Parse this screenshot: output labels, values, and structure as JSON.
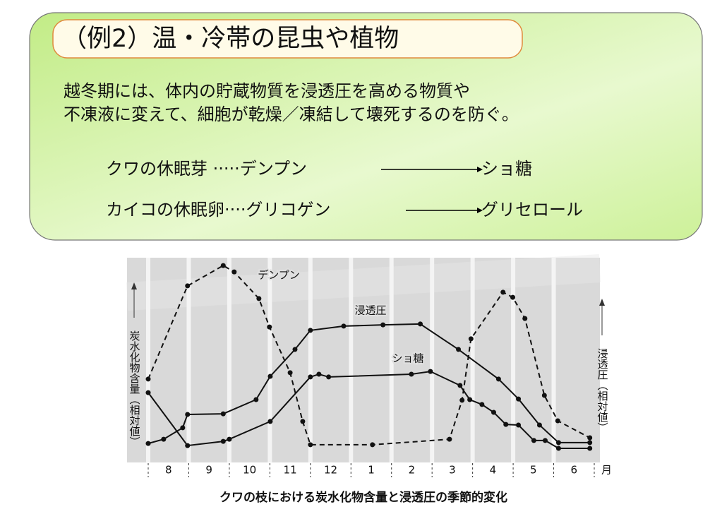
{
  "header": {
    "title": "（例2）温・冷帯の昆虫や植物"
  },
  "body": {
    "lines": [
      "越冬期には、体内の貯蔵物質を浸透圧を高める物質や",
      "不凍液に変えて、細胞が乾燥／凍結して壊死するのを防ぐ。"
    ]
  },
  "conversions": [
    {
      "from": "クワの休眠芽 ·····デンプン",
      "to": "ショ糖"
    },
    {
      "from": "カイコの休眠卵····グリコゲン",
      "to": "グリセロール"
    }
  ],
  "chart_data": {
    "type": "line",
    "title": "クワの枝における炭水化物含量と浸透圧の季節的変化",
    "ylabel": "炭水化物含量（相対値）",
    "y2label": "浸透圧（相対値）",
    "categories": [
      "8",
      "9",
      "10",
      "11",
      "12",
      "1",
      "2",
      "3",
      "4",
      "5",
      "6"
    ],
    "category_unit": "月",
    "xlim": [
      0,
      11
    ],
    "ylim": [
      0,
      100
    ],
    "series": [
      {
        "name": "デンプン",
        "color": "#111111",
        "dashed": true,
        "x": [
          0,
          0.97,
          1.85,
          2.12,
          2.73,
          2.99,
          3.5,
          3.81,
          4.0,
          5.53,
          7.43,
          7.74,
          7.96,
          8.75,
          8.99,
          9.29,
          9.77,
          10.1,
          10.89
        ],
        "values": [
          42.7,
          86.7,
          96.3,
          93.3,
          80.7,
          67.3,
          45.7,
          22.7,
          11.7,
          11.7,
          14.3,
          32.7,
          61.7,
          83.7,
          81.3,
          71.3,
          35,
          23,
          15
        ]
      },
      {
        "name": "浸透圧",
        "color": "#111111",
        "dashed": false,
        "x": [
          0,
          0.38,
          0.85,
          0.97,
          1.85,
          2.66,
          3.01,
          3.62,
          4,
          4.82,
          5.79,
          6.71,
          7.65,
          8.64,
          9.13,
          9.65,
          10.12,
          10.89
        ],
        "values": [
          12.3,
          14.3,
          19.7,
          26,
          26.3,
          33,
          44,
          56.7,
          65.7,
          67.7,
          68.3,
          68.7,
          56.7,
          42.7,
          33.3,
          21,
          12.7,
          12.7
        ]
      },
      {
        "name": "ショ糖",
        "color": "#111111",
        "dashed": false,
        "x": [
          0,
          0.97,
          1.85,
          2,
          3.01,
          4,
          4.21,
          4.45,
          6.49,
          6.96,
          7.69,
          7.93,
          8.23,
          8.52,
          8.82,
          9.13,
          9.51,
          9.79,
          10.12,
          10.89
        ],
        "values": [
          36.3,
          11.3,
          13.3,
          14.3,
          22.7,
          43.7,
          45,
          43.7,
          45,
          46.3,
          39.7,
          33,
          30.7,
          27,
          21.3,
          21,
          13.7,
          13.7,
          10,
          10
        ]
      }
    ]
  }
}
